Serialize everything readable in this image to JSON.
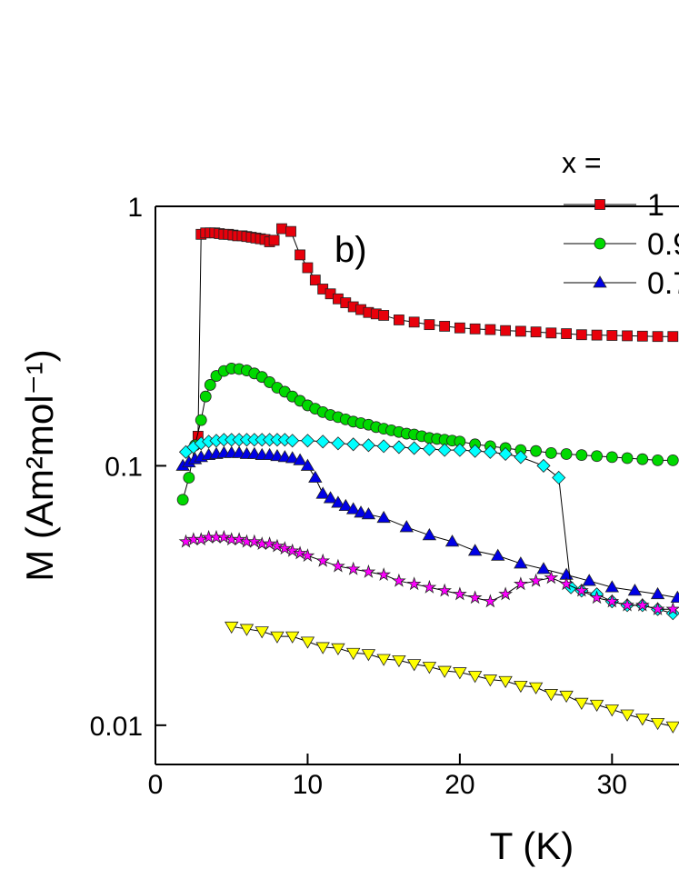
{
  "chart_data": {
    "type": "scatter",
    "annotation": "b)",
    "x_label": "T (K)",
    "y_label": "M (Am²mol⁻¹)",
    "legend_title": "x =",
    "log_y": true,
    "xlim": [
      0,
      34.4
    ],
    "ylim": [
      0.00706,
      1
    ],
    "xticks": [
      0,
      10,
      20,
      30
    ],
    "yticks": [
      0.01,
      0.1,
      1
    ],
    "series": [
      {
        "name": "1",
        "color": "#e8000b",
        "marker": "square",
        "x": [
          2.8,
          3.0,
          3.3,
          3.6,
          3.9,
          4.2,
          4.5,
          4.8,
          5.1,
          5.4,
          5.7,
          6.0,
          6.3,
          6.6,
          6.9,
          7.2,
          7.5,
          7.8,
          8.3,
          8.9,
          9.5,
          10.0,
          10.5,
          11.0,
          11.5,
          12.0,
          12.5,
          13.0,
          13.5,
          14.0,
          14.5,
          15.0,
          16.0,
          17.0,
          18.0,
          19.0,
          20.0,
          21.0,
          22.0,
          23.0,
          24.0,
          25.0,
          26.0,
          27.0,
          28.0,
          29.0,
          30.0,
          31.0,
          32.0,
          33.0,
          34.0
        ],
        "values": [
          0.13,
          0.78,
          0.79,
          0.79,
          0.79,
          0.785,
          0.78,
          0.78,
          0.775,
          0.77,
          0.77,
          0.765,
          0.76,
          0.755,
          0.75,
          0.745,
          0.73,
          0.74,
          0.82,
          0.8,
          0.65,
          0.58,
          0.52,
          0.48,
          0.46,
          0.44,
          0.425,
          0.41,
          0.4,
          0.39,
          0.385,
          0.38,
          0.365,
          0.358,
          0.35,
          0.345,
          0.34,
          0.337,
          0.335,
          0.332,
          0.33,
          0.328,
          0.325,
          0.323,
          0.32,
          0.319,
          0.318,
          0.317,
          0.316,
          0.315,
          0.315
        ]
      },
      {
        "name": "0.9",
        "color": "#00d900",
        "marker": "circle",
        "x": [
          1.8,
          2.2,
          2.6,
          3.0,
          3.3,
          3.6,
          4.0,
          4.5,
          5.0,
          5.5,
          6.0,
          6.5,
          7.0,
          7.5,
          8.0,
          8.5,
          9.0,
          9.5,
          10.0,
          10.5,
          11.0,
          11.5,
          12.0,
          12.5,
          13.0,
          13.5,
          14.0,
          14.5,
          15.0,
          15.5,
          16.0,
          16.5,
          17.0,
          17.5,
          18.0,
          18.5,
          19.0,
          19.5,
          20.0,
          21.0,
          22.0,
          23.0,
          24.0,
          25.0,
          26.0,
          27.0,
          28.0,
          29.0,
          30.0,
          31.0,
          32.0,
          33.0,
          34.0
        ],
        "values": [
          0.074,
          0.09,
          0.12,
          0.15,
          0.185,
          0.205,
          0.222,
          0.232,
          0.237,
          0.236,
          0.233,
          0.227,
          0.22,
          0.21,
          0.2,
          0.193,
          0.185,
          0.178,
          0.171,
          0.166,
          0.161,
          0.157,
          0.154,
          0.151,
          0.148,
          0.146,
          0.144,
          0.141,
          0.139,
          0.137,
          0.135,
          0.133,
          0.132,
          0.13,
          0.128,
          0.127,
          0.126,
          0.125,
          0.124,
          0.121,
          0.119,
          0.117,
          0.115,
          0.114,
          0.112,
          0.111,
          0.11,
          0.109,
          0.108,
          0.107,
          0.106,
          0.105,
          0.105
        ]
      },
      {
        "name": "0.7",
        "color": "#0000e6",
        "marker": "triangle",
        "x": [
          1.8,
          2.2,
          2.6,
          3.0,
          3.5,
          4.0,
          4.5,
          5.0,
          5.5,
          6.0,
          6.5,
          7.0,
          7.5,
          8.0,
          8.5,
          9.0,
          9.5,
          10.0,
          10.5,
          11.0,
          11.5,
          12.0,
          12.5,
          13.0,
          13.5,
          14.0,
          15.0,
          16.5,
          18.0,
          19.5,
          21.0,
          22.5,
          24.0,
          25.5,
          27.0,
          28.5,
          30.0,
          31.5,
          33.0,
          34.3
        ],
        "values": [
          0.1,
          0.103,
          0.106,
          0.108,
          0.11,
          0.111,
          0.112,
          0.112,
          0.112,
          0.111,
          0.111,
          0.11,
          0.11,
          0.109,
          0.108,
          0.107,
          0.105,
          0.1,
          0.09,
          0.078,
          0.075,
          0.072,
          0.07,
          0.068,
          0.066,
          0.065,
          0.063,
          0.058,
          0.054,
          0.051,
          0.047,
          0.045,
          0.042,
          0.04,
          0.038,
          0.036,
          0.034,
          0.033,
          0.032,
          0.031
        ]
      },
      {
        "color": "#00ffff",
        "marker": "diamond",
        "x": [
          2.0,
          2.5,
          3.0,
          3.5,
          4.0,
          4.5,
          5.0,
          5.5,
          6.0,
          6.5,
          7.0,
          7.5,
          8.0,
          8.5,
          9.0,
          10.0,
          11.0,
          12.0,
          13.0,
          14.0,
          15.0,
          16.0,
          17.0,
          18.0,
          19.0,
          20.0,
          21.0,
          22.0,
          23.0,
          24.0,
          25.5,
          26.5,
          27.3,
          28.0,
          29.0,
          30.0,
          31.0,
          32.0,
          33.0,
          34.0
        ],
        "values": [
          0.113,
          0.118,
          0.122,
          0.124,
          0.125,
          0.126,
          0.126,
          0.126,
          0.126,
          0.126,
          0.126,
          0.126,
          0.126,
          0.126,
          0.125,
          0.125,
          0.124,
          0.122,
          0.121,
          0.12,
          0.119,
          0.118,
          0.117,
          0.116,
          0.115,
          0.115,
          0.114,
          0.113,
          0.111,
          0.108,
          0.1,
          0.09,
          0.034,
          0.033,
          0.032,
          0.03,
          0.029,
          0.029,
          0.028,
          0.027
        ]
      },
      {
        "color": "#ff00ff",
        "marker": "star",
        "x": [
          2.0,
          2.5,
          3.0,
          3.5,
          4.0,
          4.5,
          5.0,
          5.5,
          6.0,
          6.5,
          7.0,
          7.5,
          8.0,
          8.5,
          9.0,
          9.5,
          10.0,
          11.0,
          12.0,
          13.0,
          14.0,
          15.0,
          16.0,
          17.0,
          18.0,
          19.0,
          20.0,
          21.0,
          22.0,
          23.0,
          24.0,
          25.0,
          26.0,
          27.0,
          28.0,
          29.0,
          30.0,
          31.0,
          32.0,
          33.0,
          34.0
        ],
        "values": [
          0.051,
          0.052,
          0.052,
          0.053,
          0.053,
          0.053,
          0.052,
          0.052,
          0.051,
          0.051,
          0.05,
          0.05,
          0.049,
          0.048,
          0.047,
          0.046,
          0.045,
          0.043,
          0.041,
          0.04,
          0.039,
          0.038,
          0.036,
          0.035,
          0.034,
          0.033,
          0.032,
          0.031,
          0.03,
          0.032,
          0.035,
          0.036,
          0.037,
          0.035,
          0.033,
          0.031,
          0.03,
          0.029,
          0.029,
          0.028,
          0.028
        ]
      },
      {
        "color": "#ffff00",
        "marker": "down-triangle",
        "x": [
          5,
          6,
          7,
          8,
          9,
          10,
          11,
          12,
          13,
          14,
          15,
          16,
          17,
          18,
          19,
          20,
          21,
          22,
          23,
          24,
          25,
          26,
          27,
          28,
          29,
          30,
          31,
          32,
          33,
          34
        ],
        "values": [
          0.024,
          0.0235,
          0.023,
          0.022,
          0.022,
          0.021,
          0.02,
          0.0198,
          0.019,
          0.0188,
          0.018,
          0.0178,
          0.0172,
          0.0168,
          0.0162,
          0.016,
          0.0155,
          0.015,
          0.0148,
          0.0142,
          0.014,
          0.0132,
          0.013,
          0.0122,
          0.012,
          0.0115,
          0.011,
          0.0106,
          0.0102,
          0.0099
        ]
      }
    ]
  }
}
